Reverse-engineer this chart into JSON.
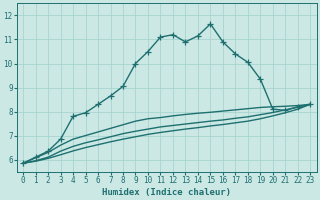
{
  "xlabel": "Humidex (Indice chaleur)",
  "xlim": [
    -0.5,
    23.5
  ],
  "ylim": [
    5.5,
    12.5
  ],
  "xticks": [
    0,
    1,
    2,
    3,
    4,
    5,
    6,
    7,
    8,
    9,
    10,
    11,
    12,
    13,
    14,
    15,
    16,
    17,
    18,
    19,
    20,
    21,
    22,
    23
  ],
  "yticks": [
    6,
    7,
    8,
    9,
    10,
    11,
    12
  ],
  "background_color": "#cce8e5",
  "grid_color": "#a8d4cf",
  "line_color": "#1e7070",
  "series": [
    {
      "x": [
        0,
        1,
        2,
        3,
        4,
        5,
        6,
        7,
        8,
        9,
        10,
        11,
        12,
        13,
        14,
        15,
        16,
        17,
        18,
        19,
        20,
        21,
        22,
        23
      ],
      "y": [
        5.85,
        6.1,
        6.35,
        6.85,
        7.8,
        7.95,
        8.3,
        8.65,
        9.05,
        10.0,
        10.5,
        11.1,
        11.2,
        10.9,
        11.15,
        11.65,
        10.9,
        10.4,
        10.05,
        9.35,
        8.1,
        8.05,
        8.2,
        8.3
      ],
      "marker": "+",
      "linewidth": 1.0,
      "markersize": 4
    },
    {
      "x": [
        0,
        2,
        3,
        4,
        5,
        6,
        7,
        8,
        9,
        10,
        11,
        12,
        13,
        14,
        15,
        16,
        17,
        18,
        19,
        20,
        21,
        22,
        23
      ],
      "y": [
        5.85,
        6.3,
        6.6,
        6.85,
        7.0,
        7.15,
        7.3,
        7.45,
        7.6,
        7.7,
        7.75,
        7.82,
        7.88,
        7.93,
        7.97,
        8.02,
        8.07,
        8.12,
        8.17,
        8.2,
        8.22,
        8.25,
        8.3
      ],
      "marker": null,
      "linewidth": 1.0,
      "markersize": 0
    },
    {
      "x": [
        0,
        1,
        2,
        3,
        4,
        5,
        6,
        7,
        8,
        9,
        10,
        11,
        12,
        13,
        14,
        15,
        16,
        17,
        18,
        19,
        20,
        21,
        22,
        23
      ],
      "y": [
        5.85,
        5.95,
        6.1,
        6.35,
        6.55,
        6.7,
        6.82,
        6.95,
        7.08,
        7.18,
        7.27,
        7.36,
        7.42,
        7.48,
        7.54,
        7.6,
        7.65,
        7.72,
        7.78,
        7.87,
        7.96,
        8.07,
        8.18,
        8.3
      ],
      "marker": null,
      "linewidth": 1.0,
      "markersize": 0
    },
    {
      "x": [
        0,
        1,
        2,
        3,
        4,
        5,
        6,
        7,
        8,
        9,
        10,
        11,
        12,
        13,
        14,
        15,
        16,
        17,
        18,
        19,
        20,
        21,
        22,
        23
      ],
      "y": [
        5.85,
        5.93,
        6.05,
        6.2,
        6.36,
        6.5,
        6.62,
        6.74,
        6.85,
        6.95,
        7.05,
        7.13,
        7.2,
        7.27,
        7.33,
        7.4,
        7.46,
        7.53,
        7.6,
        7.7,
        7.82,
        7.95,
        8.1,
        8.3
      ],
      "marker": null,
      "linewidth": 1.0,
      "markersize": 0
    }
  ]
}
